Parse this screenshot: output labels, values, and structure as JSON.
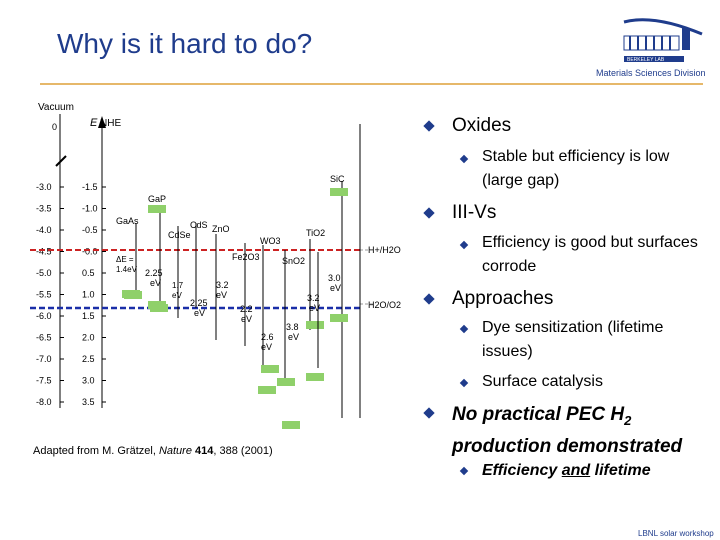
{
  "slide": {
    "title": "Why is it hard to do?",
    "logo_text": "Materials Sciences Division",
    "logo_bar_text": "BERKELEY LAB",
    "footer": "LBNL solar workshop",
    "credit_pre": "Adapted from M. Grätzel, ",
    "credit_journal": "Nature",
    "credit_vol": " 414",
    "credit_post": ", 388 (2001)"
  },
  "bullets": [
    {
      "text": "Oxides",
      "sub": [
        "Stable but efficiency is low (large gap)"
      ]
    },
    {
      "text": "III-Vs",
      "sub": [
        "Efficiency is good but surfaces corrode"
      ]
    },
    {
      "text": "Approaches",
      "sub": [
        "Dye sensitization (lifetime issues)",
        "Surface catalysis"
      ]
    },
    {
      "text": "No practical PEC H",
      "text_sub": "2",
      "text_post": " production demonstrated",
      "sub_pre": "Efficiency ",
      "sub_u": "and",
      "sub_post": " lifetime"
    }
  ],
  "diagram": {
    "vacuum_label": "Vacuum",
    "vacuum_zero": "0",
    "e_label": "E",
    "nhe_label": "NHE",
    "left_ticks": [
      "-3.0",
      "-3.5",
      "-4.0",
      "-4.5",
      "-5.0",
      "-5.5",
      "-6.0",
      "-6.5",
      "-7.0",
      "-7.5",
      "-8.0"
    ],
    "right_ticks": [
      "-1.5",
      "-1.0",
      "-0.5",
      "-0.0",
      "0.5",
      "1.0",
      "1.5",
      "2.0",
      "2.5",
      "3.0",
      "3.5"
    ],
    "materials": [
      "GaAs",
      "GaP",
      "CdSe",
      "CdS",
      "ZnO",
      "WO3",
      "Fe2O3",
      "SnO2",
      "TiO2",
      "SiC"
    ],
    "gaps": [
      "2.25 eV",
      "1.7 eV",
      "3.2 eV",
      "2.25 eV",
      "2.6 eV",
      "3.8 eV",
      "3.0 eV",
      "3.2 eV",
      "1.4eV"
    ],
    "h2_label": "H+/H2O",
    "o2_label": "H2O/O2",
    "delta_e": "ΔE = 1.4eV",
    "colors": {
      "h2_line": "#cc2222",
      "o2_line": "#1a2ea8",
      "band": "#8fd06a"
    }
  }
}
